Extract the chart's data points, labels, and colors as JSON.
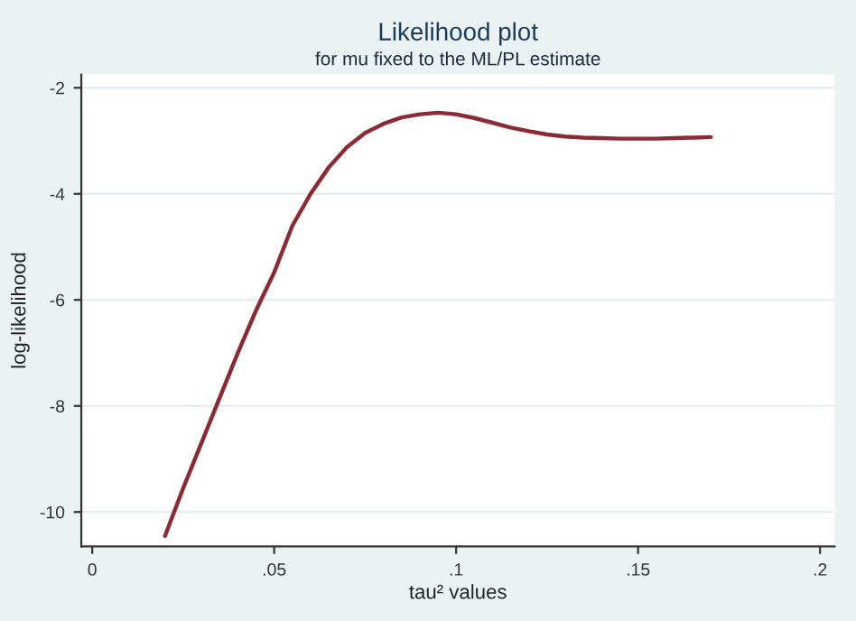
{
  "chart_data": {
    "type": "line",
    "title": "Likelihood plot",
    "subtitle": "for mu fixed to the ML/PL estimate",
    "xlabel": "tau² values",
    "ylabel": "log-likelihood",
    "x": [
      0.02,
      0.025,
      0.03,
      0.035,
      0.04,
      0.045,
      0.05,
      0.055,
      0.06,
      0.065,
      0.07,
      0.075,
      0.08,
      0.085,
      0.09,
      0.095,
      0.1,
      0.105,
      0.11,
      0.115,
      0.12,
      0.125,
      0.13,
      0.135,
      0.14,
      0.145,
      0.15,
      0.155,
      0.16,
      0.165,
      0.17
    ],
    "series": [
      {
        "color": "#8b2a32",
        "values": [
          -10.45,
          -9.55,
          -8.7,
          -7.85,
          -7.0,
          -6.2,
          -5.48,
          -4.6,
          -4.0,
          -3.5,
          -3.12,
          -2.85,
          -2.68,
          -2.56,
          -2.5,
          -2.47,
          -2.5,
          -2.57,
          -2.66,
          -2.75,
          -2.82,
          -2.88,
          -2.92,
          -2.94,
          -2.95,
          -2.96,
          -2.96,
          -2.96,
          -2.95,
          -2.94,
          -2.93
        ]
      }
    ],
    "xlim": [
      -0.003,
      0.204
    ],
    "ylim": [
      -10.65,
      -1.75
    ],
    "xticks": [
      {
        "value": 0,
        "label": "0"
      },
      {
        "value": 0.05,
        "label": ".05"
      },
      {
        "value": 0.1,
        "label": ".1"
      },
      {
        "value": 0.15,
        "label": ".15"
      },
      {
        "value": 0.2,
        "label": ".2"
      }
    ],
    "yticks": [
      -10,
      -8,
      -6,
      -4,
      -2
    ],
    "grid": "y",
    "legend": false,
    "marker": "none",
    "line_style": "solid"
  }
}
